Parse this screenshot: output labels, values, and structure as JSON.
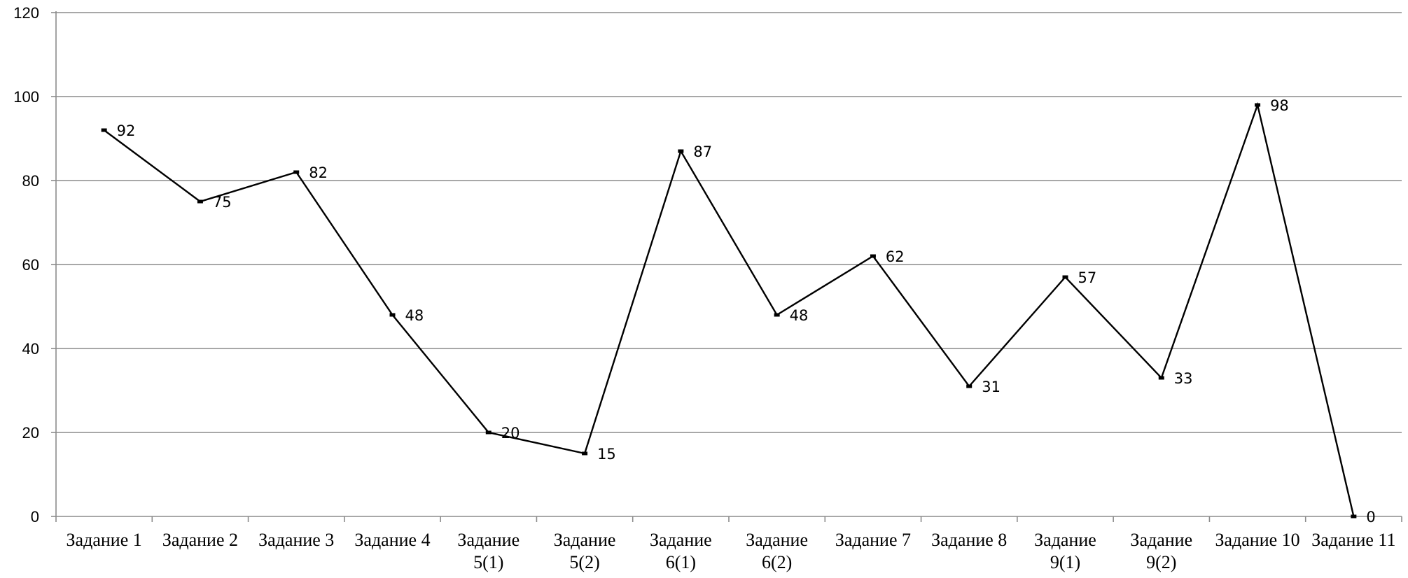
{
  "chart_data": {
    "type": "line",
    "categories": [
      "Задание 1",
      "Задание 2",
      "Задание 3",
      "Задание 4",
      "Задание 5(1)",
      "Задание 5(2)",
      "Задание 6(1)",
      "Задание 6(2)",
      "Задание 7",
      "Задание 8",
      "Задание 9(1)",
      "Задание 9(2)",
      "Задание 10",
      "Задание 11"
    ],
    "series": [
      {
        "values": [
          92,
          75,
          82,
          48,
          20,
          15,
          87,
          48,
          62,
          31,
          57,
          33,
          98,
          0
        ],
        "color": "#000000"
      }
    ],
    "ylim": [
      0,
      120
    ],
    "yticks": [
      0,
      20,
      40,
      60,
      80,
      100,
      120
    ],
    "grid": true,
    "legend": "none",
    "data_labels": true
  }
}
